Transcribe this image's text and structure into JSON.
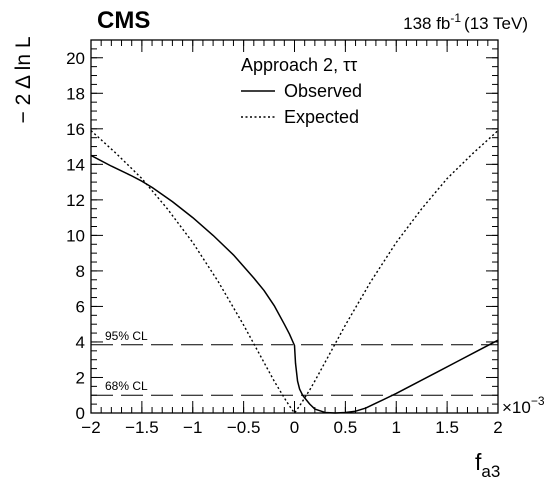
{
  "header": {
    "experiment": "CMS",
    "lumi_value": "138 fb",
    "lumi_exp": "-1",
    "lumi_energy": "(13 TeV)"
  },
  "chart_data": {
    "type": "line",
    "xlabel": {
      "main": "f",
      "sub": "a3"
    },
    "ylabel": "− 2 Δ ln L",
    "x_multiplier": "×10",
    "x_multiplier_exp": "−3",
    "xlim": [
      -2,
      2
    ],
    "ylim": [
      0,
      21
    ],
    "x_ticks": [
      -2,
      -1.5,
      -1,
      -0.5,
      0,
      0.5,
      1,
      1.5,
      2
    ],
    "x_tick_labels": [
      "−2",
      "−1.5",
      "−1",
      "−0.5",
      "0",
      "0.5",
      "1",
      "1.5",
      "2"
    ],
    "y_ticks": [
      0,
      2,
      4,
      6,
      8,
      10,
      12,
      14,
      16,
      18,
      20
    ],
    "y_tick_labels": [
      "0",
      "2",
      "4",
      "6",
      "8",
      "10",
      "12",
      "14",
      "16",
      "18",
      "20"
    ],
    "legend": {
      "title": "Approach 2, ττ",
      "placement": "top-center",
      "entries": [
        {
          "label": "Observed",
          "style": "solid"
        },
        {
          "label": "Expected",
          "style": "dotted"
        }
      ]
    },
    "reference_lines": [
      {
        "y": 3.84,
        "label": "95% CL",
        "style": "dashed"
      },
      {
        "y": 1.0,
        "label": "68% CL",
        "style": "dashed"
      }
    ],
    "series": [
      {
        "name": "Observed",
        "style": "solid",
        "x": [
          -2.0,
          -1.8,
          -1.6,
          -1.5,
          -1.4,
          -1.2,
          -1.0,
          -0.8,
          -0.6,
          -0.4,
          -0.3,
          -0.2,
          -0.1,
          -0.05,
          0.0,
          0.01,
          0.03,
          0.05,
          0.08,
          0.1,
          0.15,
          0.2,
          0.3,
          0.4,
          0.5,
          0.6,
          0.7,
          0.8,
          1.0,
          1.2,
          1.4,
          1.6,
          1.8,
          2.0
        ],
        "y": [
          14.5,
          13.9,
          13.35,
          13.05,
          12.7,
          11.9,
          11.0,
          10.0,
          8.9,
          7.6,
          6.9,
          6.05,
          5.0,
          4.45,
          3.8,
          2.8,
          1.8,
          1.35,
          1.0,
          0.85,
          0.5,
          0.22,
          0.03,
          0.0,
          0.03,
          0.1,
          0.28,
          0.55,
          1.1,
          1.7,
          2.3,
          2.9,
          3.5,
          4.1
        ]
      },
      {
        "name": "Expected",
        "style": "dotted",
        "x": [
          -2.0,
          -1.75,
          -1.5,
          -1.25,
          -1.0,
          -0.75,
          -0.5,
          -0.4,
          -0.3,
          -0.2,
          -0.1,
          -0.05,
          0.0,
          0.05,
          0.1,
          0.15,
          0.2,
          0.3,
          0.4,
          0.5,
          0.75,
          1.0,
          1.25,
          1.5,
          1.75,
          2.0
        ],
        "y": [
          15.9,
          14.6,
          13.2,
          11.5,
          9.6,
          7.4,
          4.95,
          3.9,
          2.85,
          1.8,
          0.85,
          0.4,
          0.0,
          0.4,
          0.85,
          1.3,
          1.8,
          2.85,
          3.9,
          4.95,
          7.4,
          9.6,
          11.5,
          13.2,
          14.6,
          15.9
        ]
      }
    ]
  }
}
